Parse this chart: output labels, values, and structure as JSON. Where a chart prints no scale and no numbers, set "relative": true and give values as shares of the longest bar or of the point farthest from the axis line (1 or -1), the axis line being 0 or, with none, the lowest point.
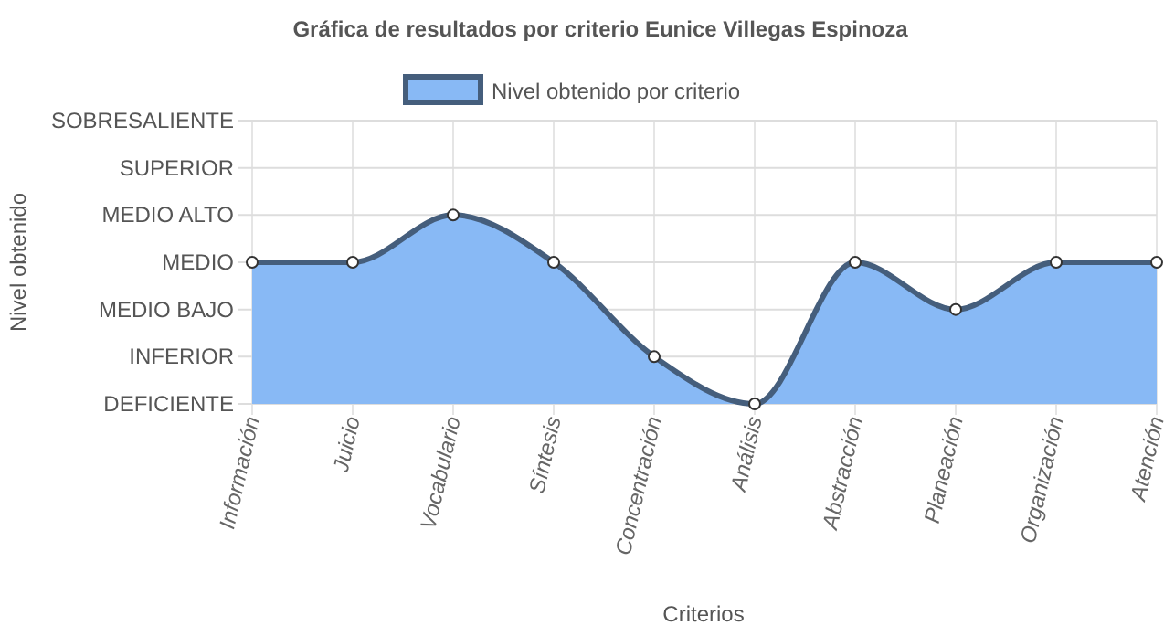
{
  "chart_data": {
    "type": "area",
    "title": "Gráfica de resultados por criterio Eunice Villegas Espinoza",
    "xlabel": "Criterios",
    "annotations": [
      "Nivel obtenido"
    ],
    "categories": [
      "Información",
      "Juicio",
      "Vocabulario",
      "Síntesis",
      "Concentración",
      "Análisis",
      "Abstracción",
      "Planeación",
      "Organización",
      "Atención"
    ],
    "series": [
      {
        "name": "Nivel obtenido por criterio",
        "color": "#88b9f5",
        "values": [
          0.75,
          0.75,
          1,
          0.75,
          0.25,
          0,
          0.75,
          0.5,
          0.75,
          0.75
        ]
      }
    ],
    "relative": true,
    "ref_lines": [
      {
        "axis": "y",
        "value": 0,
        "label": "DEFICIENTE"
      },
      {
        "axis": "y",
        "value": 0.25,
        "label": "INFERIOR"
      },
      {
        "axis": "y",
        "value": 0.5,
        "label": "MEDIO BAJO"
      },
      {
        "axis": "y",
        "value": 0.75,
        "label": "MEDIO"
      },
      {
        "axis": "y",
        "value": 1,
        "label": "MEDIO ALTO"
      },
      {
        "axis": "y",
        "value": 1.25,
        "label": "SUPERIOR"
      },
      {
        "axis": "y",
        "value": 1.5,
        "label": "SOBRESALIENTE"
      }
    ],
    "grid": "x",
    "legend": "top",
    "marker": "circle",
    "line_style": "solid"
  }
}
